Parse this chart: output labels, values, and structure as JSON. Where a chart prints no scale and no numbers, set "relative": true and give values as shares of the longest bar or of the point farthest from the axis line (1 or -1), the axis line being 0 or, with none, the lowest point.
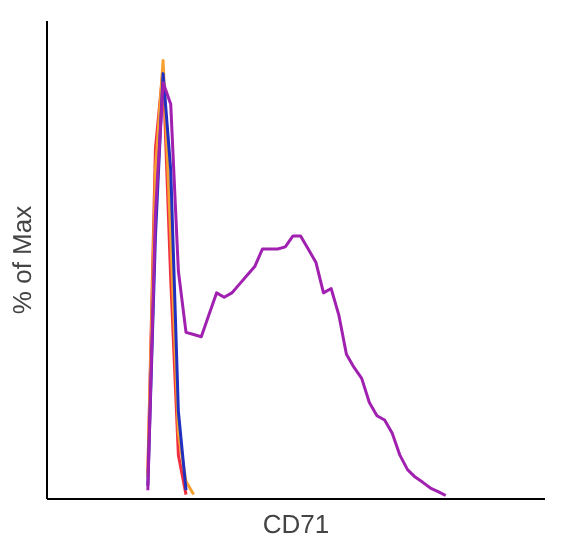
{
  "chart_data": {
    "type": "line",
    "relative": true,
    "ylabel": "% of Max",
    "xlabel": "CD71",
    "tick_labels": false,
    "categories": [
      null,
      null,
      null,
      null,
      null,
      null,
      null,
      null,
      null,
      null,
      null,
      null,
      null,
      null,
      null,
      null,
      null,
      null,
      null,
      null,
      null,
      null,
      null,
      null,
      null,
      null,
      null,
      null,
      null,
      null,
      null,
      null,
      null,
      null,
      null,
      null,
      null,
      null,
      null,
      null
    ],
    "series": [
      {
        "color": "#f03040",
        "values": [
          0.06,
          0.8,
          0.98,
          0.5,
          0.1,
          0.01,
          null,
          null,
          null,
          null,
          null,
          null,
          null,
          null,
          null,
          null,
          null,
          null,
          null,
          null,
          null,
          null,
          null,
          null,
          null,
          null,
          null,
          null,
          null,
          null,
          null,
          null,
          null,
          null,
          null,
          null,
          null,
          null,
          null,
          null
        ]
      },
      {
        "color": "#f5a030",
        "values": [
          0.05,
          0.75,
          1,
          0.6,
          0.15,
          0.04,
          0.01,
          null,
          null,
          null,
          null,
          null,
          null,
          null,
          null,
          null,
          null,
          null,
          null,
          null,
          null,
          null,
          null,
          null,
          null,
          null,
          null,
          null,
          null,
          null,
          null,
          null,
          null,
          null,
          null,
          null,
          null,
          null,
          null,
          null
        ]
      },
      {
        "color": "#2030c0",
        "values": [
          0.03,
          0.6,
          0.97,
          0.75,
          0.2,
          0.02,
          null,
          null,
          null,
          null,
          null,
          null,
          null,
          null,
          null,
          null,
          null,
          null,
          null,
          null,
          null,
          null,
          null,
          null,
          null,
          null,
          null,
          null,
          null,
          null,
          null,
          null,
          null,
          null,
          null,
          null,
          null,
          null,
          null,
          null
        ]
      },
      {
        "color": "#a020b0",
        "values": [
          0.02,
          0.65,
          0.95,
          0.9,
          0.52,
          0.38,
          0.375,
          0.37,
          0.42,
          0.47,
          0.46,
          0.47,
          0.49,
          0.51,
          0.53,
          0.57,
          0.57,
          0.57,
          0.575,
          0.6,
          0.6,
          0.57,
          0.54,
          0.47,
          0.48,
          0.42,
          0.33,
          0.3,
          0.275,
          0.22,
          0.19,
          0.18,
          0.15,
          0.1,
          0.067,
          0.05,
          0.038,
          0.025,
          0.017,
          0.008
        ]
      }
    ]
  }
}
